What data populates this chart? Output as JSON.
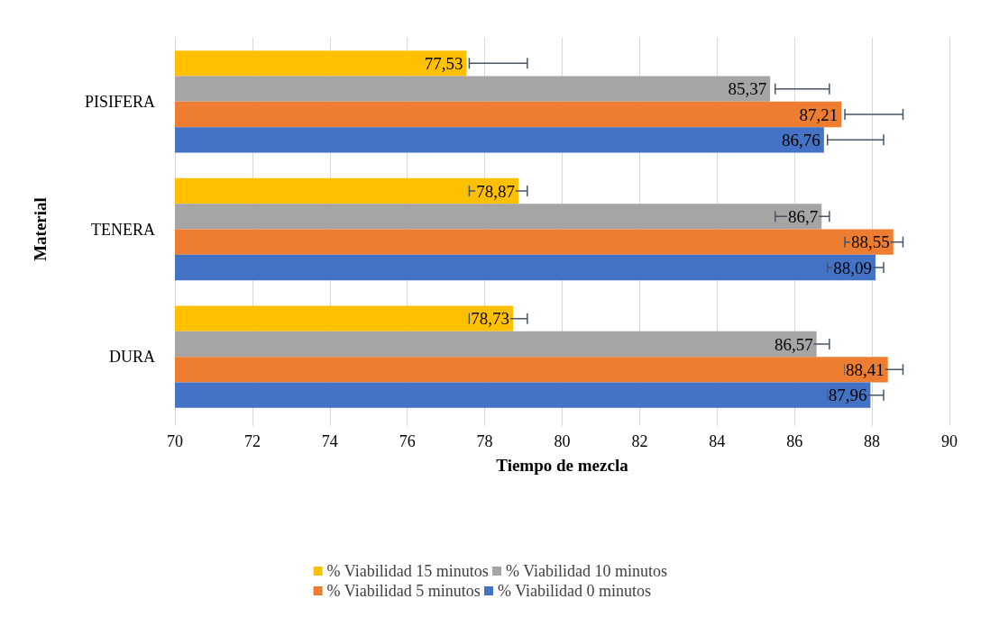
{
  "chart_data": {
    "type": "bar",
    "orientation": "horizontal",
    "xlabel": "Tiempo de mezcla",
    "ylabel": "Material",
    "categories": [
      "PISIFERA",
      "TENERA",
      "DURA"
    ],
    "series": [
      {
        "name": "% Viabilidad 15 minutos",
        "color": "#ffc000",
        "values": [
          77.53,
          78.87,
          78.73
        ],
        "value_labels": [
          "77,53",
          "78,87",
          "78,73"
        ],
        "errors": [
          [
            77.6,
            79.1
          ],
          [
            77.6,
            79.1
          ],
          [
            77.6,
            79.1
          ]
        ]
      },
      {
        "name": "% Viabilidad 10 minutos",
        "color": "#a5a5a5",
        "values": [
          85.37,
          86.7,
          86.57
        ],
        "value_labels": [
          "85,37",
          "86,7",
          "86,57"
        ],
        "errors": [
          [
            85.5,
            86.9
          ],
          [
            85.5,
            86.9
          ],
          [
            85.5,
            86.9
          ]
        ]
      },
      {
        "name": "% Viabilidad 5 minutos",
        "color": "#ed7d31",
        "values": [
          87.21,
          88.55,
          88.41
        ],
        "value_labels": [
          "87,21",
          "88,55",
          "88,41"
        ],
        "errors": [
          [
            87.3,
            88.8
          ],
          [
            87.3,
            88.8
          ],
          [
            87.3,
            88.8
          ]
        ]
      },
      {
        "name": "% Viabilidad 0 minutos",
        "color": "#4472c4",
        "values": [
          86.76,
          88.09,
          87.96
        ],
        "value_labels": [
          "86,76",
          "88,09",
          "87,96"
        ],
        "errors": [
          [
            86.85,
            88.3
          ],
          [
            86.85,
            88.3
          ],
          [
            86.85,
            88.3
          ]
        ]
      }
    ],
    "xlim": [
      70,
      90
    ],
    "xticks": [
      70,
      72,
      74,
      76,
      78,
      80,
      82,
      84,
      86,
      88,
      90
    ],
    "grid": "x",
    "legend": "bottom"
  }
}
